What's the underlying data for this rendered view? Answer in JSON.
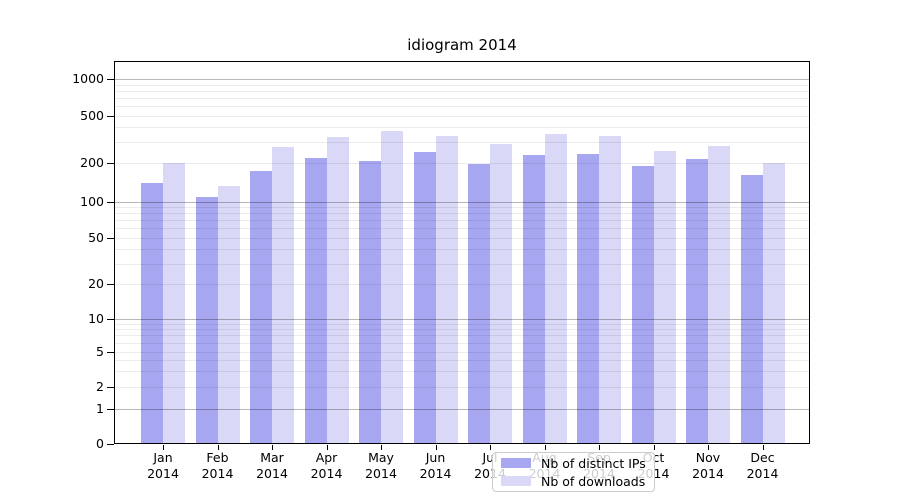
{
  "chart_data": {
    "type": "bar",
    "title": "idiogram 2014",
    "categories": [
      "Jan 2014",
      "Feb 2014",
      "Mar 2014",
      "Apr 2014",
      "May 2014",
      "Jun 2014",
      "Jul 2014",
      "Aug 2014",
      "Sep 2014",
      "Oct 2014",
      "Nov 2014",
      "Dec 2014"
    ],
    "x_tick_months": [
      "Jan",
      "Feb",
      "Mar",
      "Apr",
      "May",
      "Jun",
      "Jul",
      "Aug",
      "Sep",
      "Oct",
      "Nov",
      "Dec"
    ],
    "x_tick_year": "2014",
    "series": [
      {
        "name": "Nb of distinct IPs",
        "color": "#a6a6f1",
        "values": [
          140,
          108,
          173,
          218,
          206,
          245,
          194,
          231,
          236,
          187,
          214,
          160
        ]
      },
      {
        "name": "Nb of downloads",
        "color": "#d9d9f7",
        "values": [
          198,
          131,
          270,
          327,
          367,
          333,
          286,
          347,
          333,
          250,
          275,
          198
        ]
      }
    ],
    "y_axis": {
      "scale": "symlog",
      "ticks": [
        0,
        1,
        2,
        5,
        10,
        20,
        50,
        100,
        200,
        500,
        1000
      ],
      "ylim": [
        0,
        1400
      ]
    },
    "grid": {
      "major": true,
      "minor": true,
      "drawn_over_bars": true
    },
    "legend": {
      "position": "lower center",
      "entries": [
        "Nb of distinct IPs",
        "Nb of downloads"
      ]
    }
  }
}
